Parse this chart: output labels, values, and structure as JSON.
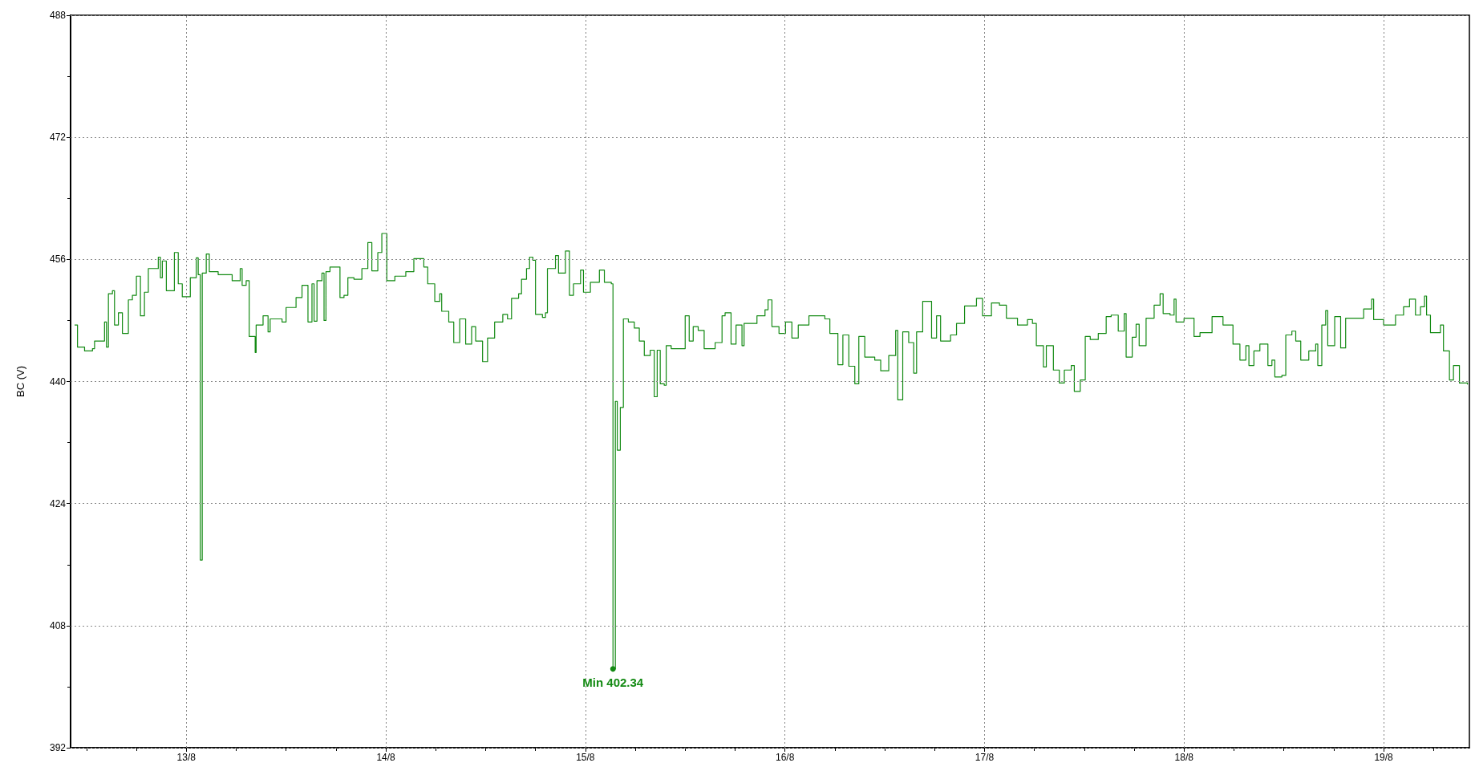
{
  "chart_data": {
    "type": "step",
    "ylabel": "BC (V)",
    "xlim": [
      "--08-12T10:05",
      "--08-19T10:19"
    ],
    "ylim": [
      392,
      488
    ],
    "xticks": [
      {
        "value": "--08-12T12:00",
        "label": null
      },
      {
        "value": "--08-12T18:00",
        "label": null
      },
      {
        "value": "--08-13",
        "label": "13/8"
      },
      {
        "value": "--08-13T06:00",
        "label": null
      },
      {
        "value": "--08-13T12:00",
        "label": null
      },
      {
        "value": "--08-13T18:00",
        "label": null
      },
      {
        "value": "--08-14",
        "label": "14/8"
      },
      {
        "value": "--08-14T06:00",
        "label": null
      },
      {
        "value": "--08-14T12:00",
        "label": null
      },
      {
        "value": "--08-14T18:00",
        "label": null
      },
      {
        "value": "--08-15",
        "label": "15/8"
      },
      {
        "value": "--08-15T06:00",
        "label": null
      },
      {
        "value": "--08-15T12:00",
        "label": null
      },
      {
        "value": "--08-15T18:00",
        "label": null
      },
      {
        "value": "--08-16",
        "label": "16/8"
      },
      {
        "value": "--08-16T06:00",
        "label": null
      },
      {
        "value": "--08-16T12:00",
        "label": null
      },
      {
        "value": "--08-16T18:00",
        "label": null
      },
      {
        "value": "--08-17",
        "label": "17/8"
      },
      {
        "value": "--08-17T06:00",
        "label": null
      },
      {
        "value": "--08-17T12:00",
        "label": null
      },
      {
        "value": "--08-17T18:00",
        "label": null
      },
      {
        "value": "--08-18",
        "label": "18/8"
      },
      {
        "value": "--08-18T06:00",
        "label": null
      },
      {
        "value": "--08-18T12:00",
        "label": null
      },
      {
        "value": "--08-18T18:00",
        "label": null
      },
      {
        "value": "--08-19",
        "label": "19/8"
      },
      {
        "value": "--08-19T06:00",
        "label": null
      }
    ],
    "yticks": [
      392,
      {
        "value": 400,
        "label": null
      },
      408,
      {
        "value": 416,
        "label": null
      },
      424,
      {
        "value": 432,
        "label": null
      },
      440,
      {
        "value": 448,
        "label": null
      },
      456,
      {
        "value": 464,
        "label": null
      },
      472,
      {
        "value": 480,
        "label": null
      },
      488
    ],
    "grid": true,
    "marker": "none",
    "line_style": "solid",
    "annotations": [
      {
        "text": "Min 402.34",
        "x": "--08-15T03:19",
        "y": 402.34
      }
    ],
    "series": [
      {
        "color": "#138a13",
        "x": [
          "--08-12T10:34",
          "--08-12T10:55",
          "--08-12T11:46",
          "--08-12T12:43",
          "--08-12T12:58",
          "--08-12T14:10",
          "--08-12T14:24",
          "--08-12T14:38",
          "--08-12T15:07",
          "--08-12T15:22",
          "--08-12T15:50",
          "--08-12T16:19",
          "--08-12T17:02",
          "--08-12T17:31",
          "--08-12T18:00",
          "--08-12T18:29",
          "--08-12T18:58",
          "--08-12T19:26",
          "--08-12T20:38",
          "--08-12T20:53",
          "--08-12T21:07",
          "--08-12T21:36",
          "--08-12T22:34",
          "--08-12T23:02",
          "--08-12T23:31",
          "--08-13T00:29",
          "--08-13T01:12",
          "--08-13T01:26",
          "--08-13T01:41",
          "--08-13T01:55",
          "--08-13T02:24",
          "--08-13T02:46",
          "--08-13T03:50",
          "--08-13T05:31",
          "--08-13T06:29",
          "--08-13T06:43",
          "--08-13T07:12",
          "--08-13T07:34",
          "--08-13T08:17",
          "--08-13T08:24",
          "--08-13T09:14",
          "--08-13T09:50",
          "--08-13T10:05",
          "--08-13T11:31",
          "--08-13T12:00",
          "--08-13T13:12",
          "--08-13T13:55",
          "--08-13T14:38",
          "--08-13T15:07",
          "--08-13T15:22",
          "--08-13T15:43",
          "--08-13T16:19",
          "--08-13T16:34",
          "--08-13T16:48",
          "--08-13T17:17",
          "--08-13T18:29",
          "--08-13T18:58",
          "--08-13T19:26",
          "--08-13T20:10",
          "--08-13T21:07",
          "--08-13T21:50",
          "--08-13T22:19",
          "--08-13T23:02",
          "--08-13T23:31",
          "--08-13T23:46",
          "--08-14T00:07",
          "--08-14T01:05",
          "--08-14T02:24",
          "--08-14T03:22",
          "--08-14T04:34",
          "--08-14T05:02",
          "--08-14T05:53",
          "--08-14T06:29",
          "--08-14T06:43",
          "--08-14T07:34",
          "--08-14T08:10",
          "--08-14T08:53",
          "--08-14T09:36",
          "--08-14T10:19",
          "--08-14T10:48",
          "--08-14T11:38",
          "--08-14T12:14",
          "--08-14T13:05",
          "--08-14T14:04",
          "--08-14T14:38",
          "--08-14T15:07",
          "--08-14T15:58",
          "--08-14T16:19",
          "--08-14T16:55",
          "--08-14T17:17",
          "--08-14T17:41",
          "--08-14T18:00",
          "--08-14T18:50",
          "--08-14T19:12",
          "--08-14T19:26",
          "--08-14T20:24",
          "--08-14T20:46",
          "--08-14T21:36",
          "--08-14T22:05",
          "--08-14T22:34",
          "--08-14T23:25",
          "--08-14T23:46",
          "--08-15T00:36",
          "--08-15T01:41",
          "--08-15T02:17",
          "--08-15T03:07",
          "--08-15T03:19",
          "--08-15T03:36",
          "--08-15T03:50",
          "--08-15T04:12",
          "--08-15T04:34",
          "--08-15T05:10",
          "--08-15T05:53",
          "--08-15T06:29",
          "--08-15T07:05",
          "--08-15T07:48",
          "--08-15T08:17",
          "--08-15T08:38",
          "--08-15T09:00",
          "--08-15T09:29",
          "--08-15T09:43",
          "--08-15T10:19",
          "--08-15T11:31",
          "--08-15T12:00",
          "--08-15T12:29",
          "--08-15T12:58",
          "--08-15T13:34",
          "--08-15T14:17",
          "--08-15T15:36",
          "--08-15T16:26",
          "--08-15T16:48",
          "--08-15T17:31",
          "--08-15T18:07",
          "--08-15T18:50",
          "--08-15T19:05",
          "--08-15T20:38",
          "--08-15T21:36",
          "--08-15T21:58",
          "--08-15T22:26",
          "--08-15T23:17",
          "--08-16T00:04",
          "--08-16T00:50",
          "--08-16T01:36",
          "--08-16T02:53",
          "--08-16T04:48",
          "--08-16T05:24",
          "--08-16T06:22",
          "--08-16T06:58",
          "--08-16T07:41",
          "--08-16T08:24",
          "--08-16T08:53",
          "--08-16T09:36",
          "--08-16T10:48",
          "--08-16T11:31",
          "--08-16T12:29",
          "--08-16T13:19",
          "--08-16T13:34",
          "--08-16T14:10",
          "--08-16T14:53",
          "--08-16T15:29",
          "--08-16T15:50",
          "--08-16T16:34",
          "--08-16T17:38",
          "--08-16T18:14",
          "--08-16T18:43",
          "--08-16T19:55",
          "--08-16T20:38",
          "--08-16T21:36",
          "--08-16T23:02",
          "--08-16T23:46",
          "--08-17T00:50",
          "--08-17T01:48",
          "--08-17T02:38",
          "--08-17T03:58",
          "--08-17T05:10",
          "--08-17T05:46",
          "--08-17T06:14",
          "--08-17T07:05",
          "--08-17T07:26",
          "--08-17T08:17",
          "--08-17T09:00",
          "--08-17T09:36",
          "--08-17T10:26",
          "--08-17T10:48",
          "--08-17T11:31",
          "--08-17T12:07",
          "--08-17T12:43",
          "--08-17T13:41",
          "--08-17T14:38",
          "--08-17T15:14",
          "--08-17T16:05",
          "--08-17T16:48",
          "--08-17T17:02",
          "--08-17T17:46",
          "--08-17T18:14",
          "--08-17T18:36",
          "--08-17T19:26",
          "--08-17T20:24",
          "--08-17T21:07",
          "--08-17T21:29",
          "--08-17T22:19",
          "--08-17T22:48",
          "--08-17T23:02",
          "--08-18T00:00",
          "--08-18T01:12",
          "--08-18T01:55",
          "--08-18T03:22",
          "--08-18T03:58",
          "--08-18T04:41",
          "--08-18T05:53",
          "--08-18T06:43",
          "--08-18T07:26",
          "--08-18T07:48",
          "--08-18T08:24",
          "--08-18T09:07",
          "--08-18T10:05",
          "--08-18T10:34",
          "--08-18T10:55",
          "--08-18T11:46",
          "--08-18T12:14",
          "--08-18T12:58",
          "--08-18T13:26",
          "--08-18T14:02",
          "--08-18T15:00",
          "--08-18T15:50",
          "--08-18T16:05",
          "--08-18T16:34",
          "--08-18T17:02",
          "--08-18T17:17",
          "--08-18T18:07",
          "--08-18T18:50",
          "--08-18T19:26",
          "--08-18T20:38",
          "--08-18T21:36",
          "--08-18T22:34",
          "--08-18T22:48",
          "--08-19T00:00",
          "--08-19T01:26",
          "--08-19T02:24",
          "--08-19T03:07",
          "--08-19T03:50",
          "--08-19T04:26",
          "--08-19T04:55",
          "--08-19T05:10",
          "--08-19T05:38",
          "--08-19T06:50",
          "--08-19T07:12",
          "--08-19T07:55",
          "--08-19T08:24",
          "--08-19T09:07",
          "--08-19T10:05"
        ],
        "values": [
          447.4,
          444.5,
          444,
          444.3,
          445.3,
          447.8,
          444.5,
          451.5,
          451.9,
          447.4,
          449,
          446.3,
          450.7,
          451.3,
          453.8,
          448.6,
          451.7,
          454.8,
          456.3,
          453.6,
          455.8,
          451.9,
          456.9,
          452.8,
          451.1,
          453.6,
          456.2,
          454,
          416.6,
          454.2,
          456.7,
          454.4,
          454,
          453.2,
          454.8,
          452.6,
          453.2,
          445.9,
          443.8,
          447.4,
          448.6,
          446.5,
          448.2,
          447.8,
          449.7,
          451,
          452.6,
          447.8,
          452.8,
          447.9,
          453.2,
          454.2,
          448,
          454.4,
          455,
          451,
          451.3,
          453.6,
          453.4,
          454.8,
          458.2,
          454.5,
          456.9,
          459.4,
          459.4,
          453.2,
          453.8,
          454.4,
          456.1,
          455,
          452.8,
          450.5,
          451.5,
          449.2,
          447.8,
          445.1,
          448.2,
          444.9,
          447.2,
          445.3,
          442.6,
          445.7,
          447.8,
          448.8,
          448.2,
          450.9,
          451.5,
          453.4,
          454.8,
          456.3,
          455.9,
          448.8,
          448.4,
          449,
          454.8,
          456.5,
          454.2,
          457.1,
          451.3,
          452.8,
          454.6,
          451.7,
          453,
          454.6,
          453,
          452.8,
          402.34,
          437.4,
          431,
          436.6,
          448.2,
          447.8,
          447,
          445.3,
          443.4,
          444.1,
          438,
          444.1,
          439.7,
          439.5,
          444.7,
          444.3,
          444.3,
          448.6,
          445.3,
          447.2,
          446.7,
          444.3,
          445.1,
          448.6,
          449,
          444.9,
          447.4,
          444.7,
          447.6,
          448.6,
          449.4,
          450.7,
          447.2,
          446.3,
          447.8,
          445.7,
          447.4,
          448.6,
          448.2,
          446.3,
          442.2,
          446.1,
          442,
          439.7,
          445.9,
          443.2,
          442.8,
          441.4,
          443.4,
          446.7,
          437.6,
          446.5,
          445.1,
          441.1,
          446.5,
          450.5,
          445.7,
          448.6,
          445.3,
          446.1,
          447.6,
          449.9,
          450.9,
          448.6,
          450.3,
          450,
          448.3,
          447.4,
          448.1,
          447.6,
          444.7,
          441.9,
          444.7,
          441.5,
          439.8,
          441.5,
          442.1,
          438.7,
          440.2,
          445.9,
          445.5,
          446.3,
          448.5,
          448.7,
          446.6,
          448.9,
          443.2,
          445.8,
          447.5,
          444.7,
          448.3,
          450,
          451.5,
          448.9,
          448.7,
          450.8,
          447.8,
          448.3,
          445.9,
          446.4,
          448.5,
          448.5,
          447.4,
          444.9,
          442.8,
          444.7,
          442.1,
          444,
          444.9,
          442.1,
          442.8,
          440.6,
          440.8,
          446.1,
          446.6,
          445.3,
          442.8,
          444,
          444.9,
          442.1,
          447.4,
          449.3,
          444.7,
          448.5,
          444.4,
          448.3,
          448.3,
          449.5,
          450.8,
          448.1,
          447.4,
          448.7,
          449.8,
          450.8,
          448.7,
          449.8,
          451.2,
          448.7,
          446.4,
          447.4,
          444,
          440.2,
          442.1,
          439.8,
          439.6
        ]
      }
    ]
  }
}
